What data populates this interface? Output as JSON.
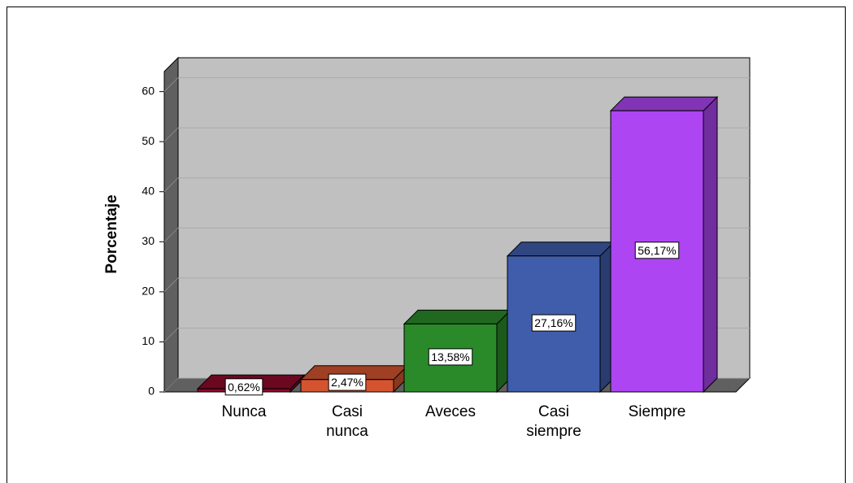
{
  "chart_data": {
    "type": "bar3d",
    "ylabel": "Porcentaje",
    "categories": [
      "Nunca",
      "Casi nunca",
      "Aveces",
      "Casi siempre",
      "Siempre"
    ],
    "values": [
      0.62,
      2.47,
      13.58,
      27.16,
      56.17
    ],
    "value_labels": [
      "0,62%",
      "2,47%",
      "13,58%",
      "27,16%",
      "56,17%"
    ],
    "colors": [
      "#8e0a2a",
      "#d45430",
      "#2a8a2a",
      "#3f5dab",
      "#ad45f2"
    ],
    "ylim": [
      0,
      64
    ],
    "yticks": [
      0,
      10,
      20,
      30,
      40,
      50,
      60
    ],
    "grid": true
  }
}
